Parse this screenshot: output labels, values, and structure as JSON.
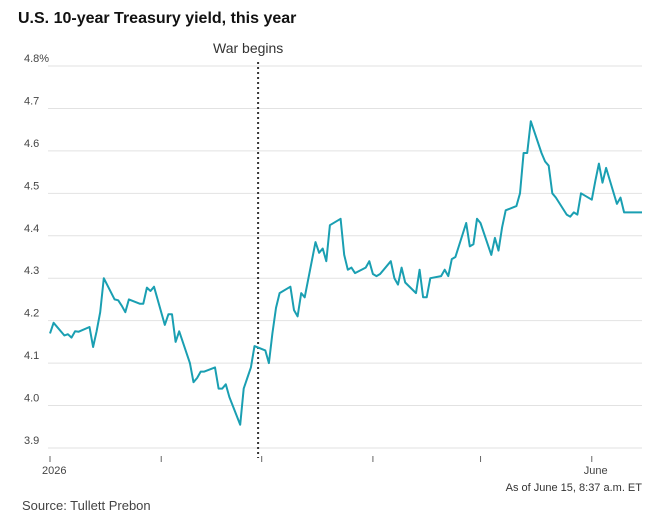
{
  "chart_data": {
    "type": "line",
    "title": "U.S. 10-year Treasury yield, this year",
    "subtitle": "",
    "xlabel": "",
    "ylabel": "",
    "ylim": [
      3.9,
      4.8
    ],
    "yticks": [
      3.9,
      4.0,
      4.1,
      4.2,
      4.3,
      4.4,
      4.5,
      4.6,
      4.7,
      4.8
    ],
    "ytick_labels": [
      "3.9",
      "4.0",
      "4.1",
      "4.2",
      "4.3",
      "4.4",
      "4.5",
      "4.6",
      "4.7",
      "4.8%"
    ],
    "x_range": [
      "2026-01-01",
      "2026-06-15"
    ],
    "x_ticks": [
      {
        "date": "2026-01-01",
        "label": "2026"
      },
      {
        "date": "2026-02-01",
        "label": ""
      },
      {
        "date": "2026-03-01",
        "label": ""
      },
      {
        "date": "2026-04-01",
        "label": ""
      },
      {
        "date": "2026-05-01",
        "label": ""
      },
      {
        "date": "2026-06-01",
        "label": "June"
      }
    ],
    "grid": "horizontal",
    "line_color": "#1a9fb2",
    "annotation": {
      "date": "2026-02-28",
      "label": "War begins"
    },
    "note": "As of June 15, 8:37 a.m. ET",
    "source": "Source: Tullett Prebon",
    "series": [
      {
        "x": [
          "2026-01-01",
          "2026-01-02",
          "2026-01-05",
          "2026-01-06",
          "2026-01-07",
          "2026-01-08",
          "2026-01-09",
          "2026-01-12",
          "2026-01-13",
          "2026-01-14",
          "2026-01-15",
          "2026-01-16",
          "2026-01-19",
          "2026-01-20",
          "2026-01-21",
          "2026-01-22",
          "2026-01-23",
          "2026-01-26",
          "2026-01-27",
          "2026-01-28",
          "2026-01-29",
          "2026-01-30",
          "2026-02-02",
          "2026-02-03",
          "2026-02-04",
          "2026-02-05",
          "2026-02-06",
          "2026-02-09",
          "2026-02-10",
          "2026-02-11",
          "2026-02-12",
          "2026-02-13",
          "2026-02-16",
          "2026-02-17",
          "2026-02-18",
          "2026-02-19",
          "2026-02-20",
          "2026-02-23",
          "2026-02-24",
          "2026-02-25",
          "2026-02-26",
          "2026-02-27",
          "2026-03-02",
          "2026-03-03",
          "2026-03-04",
          "2026-03-05",
          "2026-03-06",
          "2026-03-09",
          "2026-03-10",
          "2026-03-11",
          "2026-03-12",
          "2026-03-13",
          "2026-03-16",
          "2026-03-17",
          "2026-03-18",
          "2026-03-19",
          "2026-03-20",
          "2026-03-23",
          "2026-03-24",
          "2026-03-25",
          "2026-03-26",
          "2026-03-27",
          "2026-03-30",
          "2026-03-31",
          "2026-04-01",
          "2026-04-02",
          "2026-04-03",
          "2026-04-06",
          "2026-04-07",
          "2026-04-08",
          "2026-04-09",
          "2026-04-10",
          "2026-04-13",
          "2026-04-14",
          "2026-04-15",
          "2026-04-16",
          "2026-04-17",
          "2026-04-20",
          "2026-04-21",
          "2026-04-22",
          "2026-04-23",
          "2026-04-24",
          "2026-04-27",
          "2026-04-28",
          "2026-04-29",
          "2026-04-30",
          "2026-05-01",
          "2026-05-04",
          "2026-05-05",
          "2026-05-06",
          "2026-05-07",
          "2026-05-08",
          "2026-05-11",
          "2026-05-12",
          "2026-05-13",
          "2026-05-14",
          "2026-05-15",
          "2026-05-18",
          "2026-05-19",
          "2026-05-20",
          "2026-05-21",
          "2026-05-22",
          "2026-05-25",
          "2026-05-26",
          "2026-05-27",
          "2026-05-28",
          "2026-05-29",
          "2026-06-01",
          "2026-06-02",
          "2026-06-03",
          "2026-06-04",
          "2026-06-05",
          "2026-06-08",
          "2026-06-09",
          "2026-06-10",
          "2026-06-11",
          "2026-06-12",
          "2026-06-15"
        ],
        "values": [
          4.17,
          4.195,
          4.165,
          4.168,
          4.16,
          4.175,
          4.174,
          4.185,
          4.138,
          4.175,
          4.22,
          4.3,
          4.25,
          4.248,
          4.235,
          4.22,
          4.25,
          4.24,
          4.24,
          4.278,
          4.27,
          4.28,
          4.19,
          4.215,
          4.215,
          4.15,
          4.175,
          4.1,
          4.055,
          4.065,
          4.08,
          4.08,
          4.09,
          4.04,
          4.04,
          4.05,
          4.02,
          3.955,
          4.04,
          4.065,
          4.09,
          4.14,
          4.13,
          4.1,
          4.17,
          4.23,
          4.265,
          4.28,
          4.225,
          4.21,
          4.265,
          4.255,
          4.385,
          4.36,
          4.37,
          4.34,
          4.425,
          4.44,
          4.355,
          4.32,
          4.325,
          4.312,
          4.325,
          4.34,
          4.31,
          4.305,
          4.31,
          4.34,
          4.3,
          4.285,
          4.325,
          4.29,
          4.265,
          4.32,
          4.255,
          4.255,
          4.3,
          4.305,
          4.32,
          4.305,
          4.345,
          4.35,
          4.43,
          4.375,
          4.38,
          4.44,
          4.43,
          4.355,
          4.395,
          4.365,
          4.42,
          4.46,
          4.47,
          4.5,
          4.595,
          4.595,
          4.67,
          4.595,
          4.575,
          4.565,
          4.5,
          4.49,
          4.45,
          4.445,
          4.455,
          4.45,
          4.5,
          4.485,
          4.53,
          4.57,
          4.525,
          4.56,
          4.475,
          4.49,
          4.455,
          4.455,
          4.455,
          4.455
        ]
      }
    ]
  }
}
